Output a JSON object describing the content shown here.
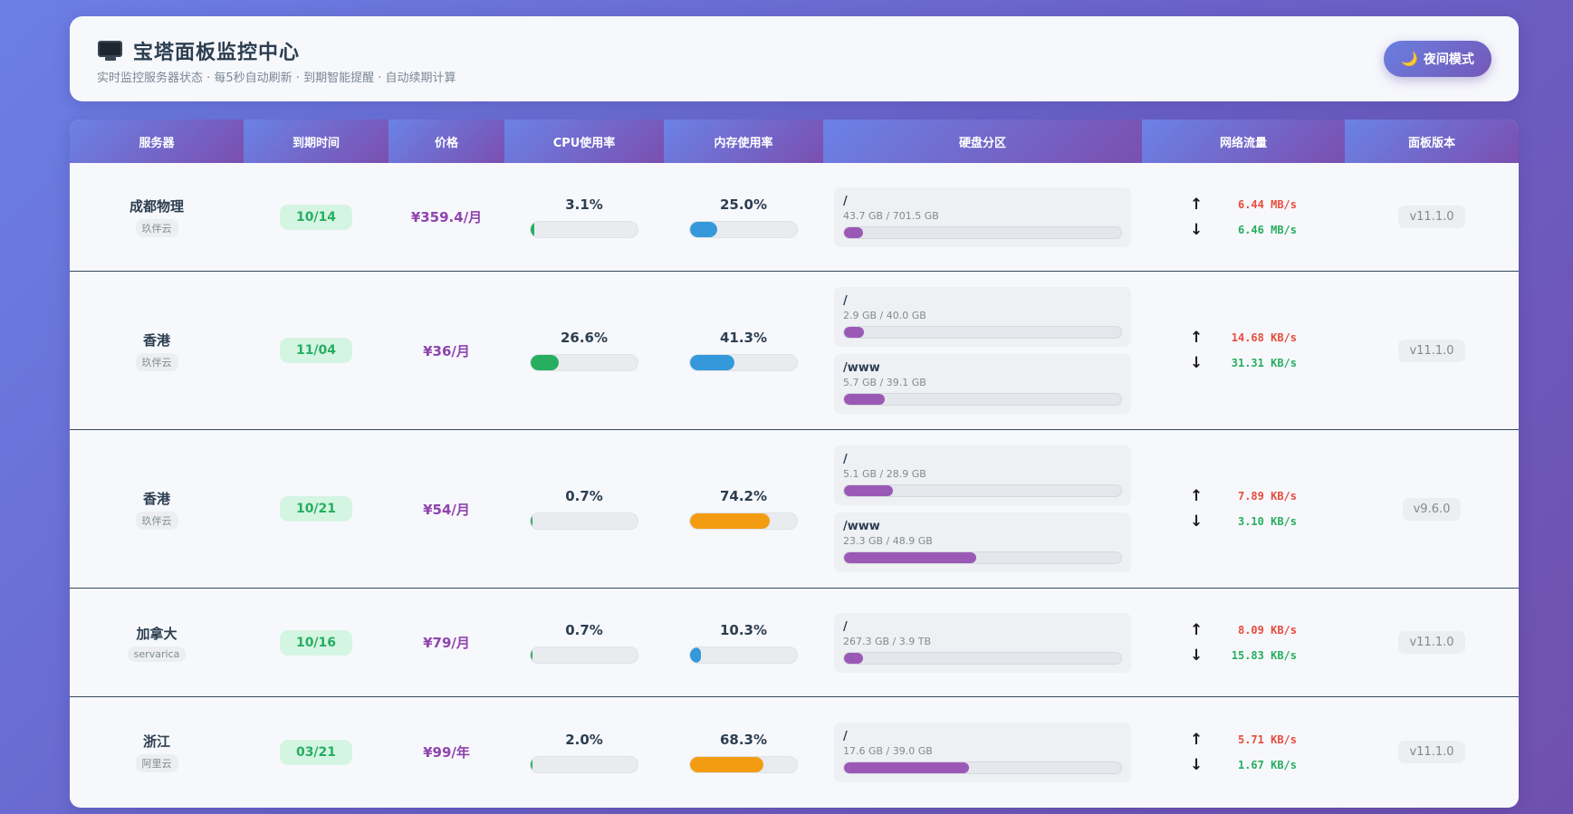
{
  "header": {
    "title": "宝塔面板监控中心",
    "subtitle": "实时监控服务器状态 · 每5秒自动刷新 · 到期智能提醒 · 自动续期计算",
    "night_mode_label": "夜间模式",
    "icon": "monitor-icon"
  },
  "columns": [
    "服务器",
    "到期时间",
    "价格",
    "CPU使用率",
    "内存使用率",
    "硬盘分区",
    "网络流量",
    "面板版本"
  ],
  "colors": {
    "cpu_green": "#27ae60",
    "mem_blue": "#3498db",
    "mem_orange": "#f39c12",
    "disk_purple": "#9b59b6",
    "upload_red": "#e74c3c",
    "download_green": "#27ae60"
  },
  "servers": [
    {
      "name": "成都物理",
      "provider": "玖伴云",
      "expiry": "10/14",
      "price": "¥359.4/月",
      "cpu": "3.1%",
      "cpu_pct": 3.1,
      "mem": "25.0%",
      "mem_pct": 25.0,
      "mem_color": "#3498db",
      "disks": [
        {
          "mount": "/",
          "size": "43.7 GB / 701.5 GB",
          "pct": 6.2
        }
      ],
      "up": "6.44 MB/s",
      "down": "6.46 MB/s",
      "version": "v11.1.0"
    },
    {
      "name": "香港",
      "provider": "玖伴云",
      "expiry": "11/04",
      "price": "¥36/月",
      "cpu": "26.6%",
      "cpu_pct": 26.6,
      "mem": "41.3%",
      "mem_pct": 41.3,
      "mem_color": "#3498db",
      "disks": [
        {
          "mount": "/",
          "size": "2.9 GB / 40.0 GB",
          "pct": 7.3
        },
        {
          "mount": "/www",
          "size": "5.7 GB / 39.1 GB",
          "pct": 14.6
        }
      ],
      "up": "14.68 KB/s",
      "down": "31.31 KB/s",
      "version": "v11.1.0"
    },
    {
      "name": "香港",
      "provider": "玖伴云",
      "expiry": "10/21",
      "price": "¥54/月",
      "cpu": "0.7%",
      "cpu_pct": 0.7,
      "mem": "74.2%",
      "mem_pct": 74.2,
      "mem_color": "#f39c12",
      "disks": [
        {
          "mount": "/",
          "size": "5.1 GB / 28.9 GB",
          "pct": 17.6
        },
        {
          "mount": "/www",
          "size": "23.3 GB / 48.9 GB",
          "pct": 47.6
        }
      ],
      "up": "7.89 KB/s",
      "down": "3.10 KB/s",
      "version": "v9.6.0"
    },
    {
      "name": "加拿大",
      "provider": "servarica",
      "expiry": "10/16",
      "price": "¥79/月",
      "cpu": "0.7%",
      "cpu_pct": 0.7,
      "mem": "10.3%",
      "mem_pct": 10.3,
      "mem_color": "#3498db",
      "disks": [
        {
          "mount": "/",
          "size": "267.3 GB / 3.9 TB",
          "pct": 6.7
        }
      ],
      "up": "8.09 KB/s",
      "down": "15.83 KB/s",
      "version": "v11.1.0"
    },
    {
      "name": "浙江",
      "provider": "阿里云",
      "expiry": "03/21",
      "price": "¥99/年",
      "cpu": "2.0%",
      "cpu_pct": 2.0,
      "mem": "68.3%",
      "mem_pct": 68.3,
      "mem_color": "#f39c12",
      "disks": [
        {
          "mount": "/",
          "size": "17.6 GB / 39.0 GB",
          "pct": 45.1
        }
      ],
      "up": "5.71 KB/s",
      "down": "1.67 KB/s",
      "version": "v11.1.0"
    }
  ]
}
